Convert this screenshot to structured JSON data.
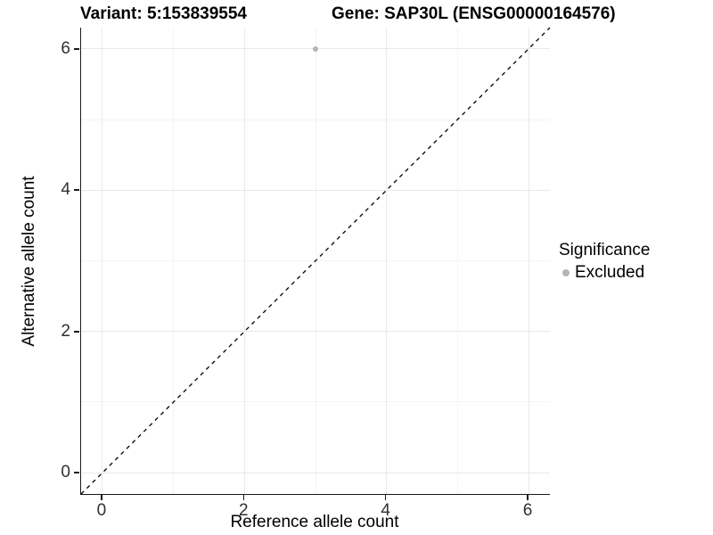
{
  "titles": {
    "variant": "Variant: 5:153839554",
    "gene": "Gene: SAP30L (ENSG00000164576)"
  },
  "axes": {
    "x": {
      "label": "Reference allele count"
    },
    "y": {
      "label": "Alternative allele count"
    }
  },
  "legend": {
    "title": "Significance",
    "items": [
      {
        "label": "Excluded",
        "color": "#b5b5b5"
      }
    ]
  },
  "chart_data": {
    "type": "scatter",
    "title_left": "Variant: 5:153839554",
    "title_right": "Gene: SAP30L (ENSG00000164576)",
    "xlabel": "Reference allele count",
    "ylabel": "Alternative allele count",
    "xlim": [
      -0.3,
      6.3
    ],
    "ylim": [
      -0.3,
      6.3
    ],
    "x_ticks": [
      0,
      2,
      4,
      6
    ],
    "y_ticks": [
      0,
      2,
      4,
      6
    ],
    "grid": true,
    "legend_position": "right",
    "series": [
      {
        "name": "Excluded",
        "color": "#b5b5b5",
        "points": [
          {
            "x": 3,
            "y": 6
          }
        ]
      }
    ],
    "reference_line": {
      "type": "identity",
      "style": "dashed",
      "color": "#000000"
    }
  },
  "colors": {
    "grid_major": "#e9e9e9",
    "grid_minor": "#f4f4f4",
    "axis_line": "#1a1a1a",
    "point": "#b5b5b5",
    "text": "#000000",
    "tick_text": "#303030"
  }
}
